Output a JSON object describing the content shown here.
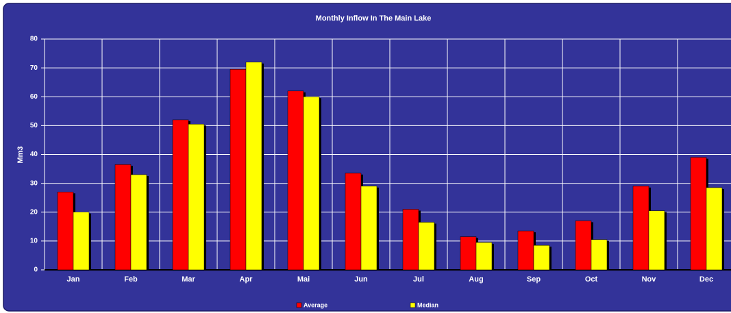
{
  "chart_data": {
    "type": "bar",
    "title": "Monthly Inflow In The Main Lake",
    "y_label": "Mm3",
    "categories": [
      "Jan",
      "Feb",
      "Mar",
      "Apr",
      "Mai",
      "Jun",
      "Jul",
      "Aug",
      "Sep",
      "Oct",
      "Nov",
      "Dec"
    ],
    "series": [
      {
        "name": "Average",
        "color": "#ff0000",
        "values": [
          27,
          36.5,
          52,
          69.5,
          62,
          33.5,
          21,
          11.5,
          13.5,
          17,
          29,
          39
        ]
      },
      {
        "name": "Median",
        "color": "#ffff00",
        "values": [
          20,
          33,
          50.5,
          72,
          60,
          29,
          16.5,
          9.5,
          8.5,
          10.5,
          20.5,
          28.5
        ]
      }
    ],
    "ylim": [
      0,
      80
    ],
    "yticks": [
      0,
      10,
      20,
      30,
      40,
      50,
      60,
      70,
      80
    ],
    "grid": true,
    "legend": "bottom",
    "background": "#333399"
  }
}
